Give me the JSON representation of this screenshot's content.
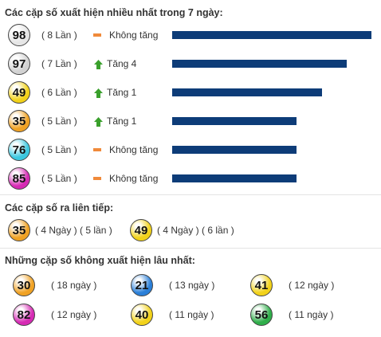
{
  "bar_color": "#0d3c78",
  "frequent": {
    "title": "Các cặp số xuất hiện nhiều nhất trong 7 ngày:",
    "rows": [
      {
        "ball": "98",
        "color": "#e6e6e6",
        "count": 8,
        "count_label": "( 8 Lần )",
        "trend": "flat",
        "change": "Không tăng"
      },
      {
        "ball": "97",
        "color": "#d2d2d2",
        "count": 7,
        "count_label": "( 7 Lần )",
        "trend": "up",
        "change": "Tăng 4"
      },
      {
        "ball": "49",
        "color": "#f2d21a",
        "count": 6,
        "count_label": "( 6 Lần )",
        "trend": "up",
        "change": "Tăng 1"
      },
      {
        "ball": "35",
        "color": "#f0a224",
        "count": 5,
        "count_label": "( 5 Lần )",
        "trend": "up",
        "change": "Tăng 1"
      },
      {
        "ball": "76",
        "color": "#3cc8e0",
        "count": 5,
        "count_label": "( 5 Lần )",
        "trend": "flat",
        "change": "Không tăng"
      },
      {
        "ball": "85",
        "color": "#d62ab4",
        "count": 5,
        "count_label": "( 5 Lần )",
        "trend": "flat",
        "change": "Không tăng"
      }
    ]
  },
  "consecutive": {
    "title": "Các cặp số ra liên tiếp:",
    "items": [
      {
        "ball": "35",
        "color": "#f0a224",
        "info": "( 4 Ngày ) ( 5 lần )"
      },
      {
        "ball": "49",
        "color": "#f2d21a",
        "info": "( 4 Ngày ) ( 6 lần )"
      }
    ]
  },
  "absent": {
    "title": "Những cặp số không xuất hiện lâu nhất:",
    "items": [
      {
        "ball": "30",
        "color": "#f0a224",
        "days": "( 18 ngày )"
      },
      {
        "ball": "21",
        "color": "#2a7fd8",
        "days": "( 13 ngày )"
      },
      {
        "ball": "41",
        "color": "#f2d21a",
        "days": "( 12 ngày )"
      },
      {
        "ball": "82",
        "color": "#d62ab4",
        "days": "( 12 ngày )"
      },
      {
        "ball": "40",
        "color": "#f2d21a",
        "days": "( 11 ngày )"
      },
      {
        "ball": "56",
        "color": "#2fae4a",
        "days": "( 11 ngày )"
      }
    ]
  }
}
